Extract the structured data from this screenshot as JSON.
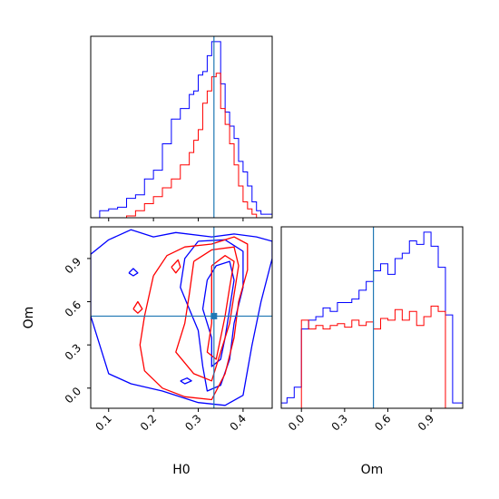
{
  "chart_data": [
    {
      "panel": "H0-marginal",
      "type": "histogram",
      "xlim": [
        0.06,
        0.465
      ],
      "truth": 0.335,
      "x_ticks": [
        0.1,
        0.2,
        0.3,
        0.4
      ],
      "series": [
        {
          "color": "#0000ff",
          "edges": [
            0.06,
            0.08,
            0.1,
            0.12,
            0.14,
            0.16,
            0.18,
            0.2,
            0.22,
            0.24,
            0.26,
            0.28,
            0.29,
            0.3,
            0.31,
            0.32,
            0.33,
            0.34,
            0.35,
            0.36,
            0.37,
            0.38,
            0.39,
            0.4,
            0.41,
            0.42,
            0.43,
            0.44,
            0.45,
            0.465
          ],
          "heights": [
            0.0,
            0.04,
            0.05,
            0.06,
            0.11,
            0.13,
            0.22,
            0.27,
            0.42,
            0.56,
            0.62,
            0.7,
            0.72,
            0.81,
            0.83,
            0.92,
            1.0,
            1.0,
            0.76,
            0.6,
            0.52,
            0.45,
            0.32,
            0.26,
            0.18,
            0.09,
            0.04,
            0.02,
            0.02
          ]
        },
        {
          "color": "#ff0000",
          "edges": [
            0.06,
            0.14,
            0.16,
            0.18,
            0.2,
            0.22,
            0.24,
            0.26,
            0.28,
            0.29,
            0.3,
            0.31,
            0.32,
            0.33,
            0.34,
            0.35,
            0.36,
            0.37,
            0.38,
            0.39,
            0.4,
            0.41,
            0.42,
            0.43,
            0.465
          ],
          "heights": [
            0.0,
            0.01,
            0.04,
            0.08,
            0.12,
            0.17,
            0.22,
            0.3,
            0.37,
            0.44,
            0.5,
            0.65,
            0.72,
            0.8,
            0.82,
            0.62,
            0.53,
            0.42,
            0.3,
            0.18,
            0.09,
            0.05,
            0.02,
            0.0
          ]
        }
      ]
    },
    {
      "panel": "H0-Om-2D",
      "type": "contour",
      "xlabel": "H0",
      "ylabel": "Om",
      "xlim": [
        0.06,
        0.465
      ],
      "ylim": [
        -0.14,
        1.12
      ],
      "truth": [
        0.335,
        0.5
      ],
      "x_ticks": [
        0.1,
        0.2,
        0.3,
        0.4
      ],
      "y_ticks": [
        0.0,
        0.3,
        0.6,
        0.9
      ],
      "series": [
        {
          "color": "#0000ff",
          "contours": [
            [
              [
                0.06,
                0.93
              ],
              [
                0.1,
                1.03
              ],
              [
                0.15,
                1.1
              ],
              [
                0.2,
                1.05
              ],
              [
                0.25,
                1.08
              ],
              [
                0.33,
                1.05
              ],
              [
                0.38,
                1.07
              ],
              [
                0.43,
                1.05
              ],
              [
                0.465,
                1.02
              ],
              [
                0.465,
                0.9
              ],
              [
                0.44,
                0.6
              ],
              [
                0.42,
                0.3
              ],
              [
                0.4,
                -0.05
              ],
              [
                0.36,
                -0.12
              ],
              [
                0.3,
                -0.1
              ],
              [
                0.22,
                -0.02
              ],
              [
                0.15,
                0.03
              ],
              [
                0.1,
                0.1
              ],
              [
                0.08,
                0.3
              ],
              [
                0.06,
                0.5
              ],
              [
                0.06,
                0.93
              ]
            ],
            [
              [
                0.3,
                1.02
              ],
              [
                0.36,
                1.03
              ],
              [
                0.4,
                0.95
              ],
              [
                0.4,
                0.7
              ],
              [
                0.38,
                0.45
              ],
              [
                0.37,
                0.2
              ],
              [
                0.35,
                0.02
              ],
              [
                0.32,
                -0.02
              ],
              [
                0.31,
                0.15
              ],
              [
                0.3,
                0.4
              ],
              [
                0.28,
                0.55
              ],
              [
                0.26,
                0.7
              ],
              [
                0.27,
                0.9
              ],
              [
                0.3,
                1.02
              ]
            ],
            [
              [
                0.32,
                0.75
              ],
              [
                0.34,
                0.85
              ],
              [
                0.37,
                0.88
              ],
              [
                0.38,
                0.75
              ],
              [
                0.37,
                0.55
              ],
              [
                0.36,
                0.35
              ],
              [
                0.35,
                0.2
              ],
              [
                0.33,
                0.15
              ],
              [
                0.33,
                0.35
              ],
              [
                0.31,
                0.55
              ],
              [
                0.32,
                0.75
              ]
            ],
            [
              [
                0.145,
                0.8
              ],
              [
                0.155,
                0.83
              ],
              [
                0.165,
                0.8
              ],
              [
                0.155,
                0.78
              ],
              [
                0.145,
                0.8
              ]
            ],
            [
              [
                0.26,
                0.05
              ],
              [
                0.275,
                0.07
              ],
              [
                0.285,
                0.05
              ],
              [
                0.27,
                0.03
              ],
              [
                0.26,
                0.05
              ]
            ]
          ]
        },
        {
          "color": "#ff0000",
          "contours": [
            [
              [
                0.2,
                0.78
              ],
              [
                0.23,
                0.92
              ],
              [
                0.27,
                0.98
              ],
              [
                0.33,
                1.0
              ],
              [
                0.38,
                1.05
              ],
              [
                0.41,
                1.0
              ],
              [
                0.41,
                0.82
              ],
              [
                0.39,
                0.6
              ],
              [
                0.38,
                0.35
              ],
              [
                0.36,
                0.1
              ],
              [
                0.33,
                -0.08
              ],
              [
                0.27,
                -0.06
              ],
              [
                0.22,
                0.0
              ],
              [
                0.18,
                0.12
              ],
              [
                0.17,
                0.3
              ],
              [
                0.18,
                0.5
              ],
              [
                0.2,
                0.78
              ]
            ],
            [
              [
                0.29,
                0.88
              ],
              [
                0.33,
                0.96
              ],
              [
                0.38,
                0.98
              ],
              [
                0.39,
                0.85
              ],
              [
                0.38,
                0.65
              ],
              [
                0.37,
                0.45
              ],
              [
                0.35,
                0.25
              ],
              [
                0.33,
                0.05
              ],
              [
                0.29,
                0.1
              ],
              [
                0.25,
                0.25
              ],
              [
                0.27,
                0.45
              ],
              [
                0.28,
                0.65
              ],
              [
                0.29,
                0.88
              ]
            ],
            [
              [
                0.33,
                0.85
              ],
              [
                0.36,
                0.92
              ],
              [
                0.38,
                0.88
              ],
              [
                0.37,
                0.7
              ],
              [
                0.36,
                0.5
              ],
              [
                0.35,
                0.35
              ],
              [
                0.34,
                0.2
              ],
              [
                0.32,
                0.25
              ],
              [
                0.33,
                0.45
              ],
              [
                0.33,
                0.65
              ],
              [
                0.33,
                0.85
              ]
            ],
            [
              [
                0.155,
                0.55
              ],
              [
                0.165,
                0.6
              ],
              [
                0.175,
                0.55
              ],
              [
                0.165,
                0.52
              ],
              [
                0.155,
                0.55
              ]
            ],
            [
              [
                0.24,
                0.84
              ],
              [
                0.255,
                0.89
              ],
              [
                0.26,
                0.84
              ],
              [
                0.25,
                0.8
              ],
              [
                0.24,
                0.84
              ]
            ]
          ]
        }
      ]
    },
    {
      "panel": "Om-marginal",
      "type": "histogram",
      "xlabel": "Om",
      "xlim": [
        -0.14,
        1.12
      ],
      "truth": 0.5,
      "x_ticks": [
        0.0,
        0.3,
        0.6,
        0.9
      ],
      "series": [
        {
          "color": "#0000ff",
          "edges": [
            -0.14,
            -0.1,
            -0.05,
            0.0,
            0.05,
            0.1,
            0.15,
            0.2,
            0.25,
            0.3,
            0.35,
            0.4,
            0.45,
            0.5,
            0.55,
            0.6,
            0.65,
            0.7,
            0.75,
            0.8,
            0.85,
            0.9,
            0.95,
            1.0,
            1.05,
            1.12
          ],
          "heights": [
            0.03,
            0.06,
            0.12,
            0.45,
            0.5,
            0.52,
            0.57,
            0.55,
            0.6,
            0.6,
            0.62,
            0.67,
            0.72,
            0.78,
            0.82,
            0.76,
            0.85,
            0.88,
            0.95,
            0.93,
            1.0,
            0.92,
            0.8,
            0.53,
            0.03
          ]
        },
        {
          "color": "#ff0000",
          "edges": [
            -0.14,
            0.0,
            0.05,
            0.1,
            0.15,
            0.2,
            0.25,
            0.3,
            0.35,
            0.4,
            0.45,
            0.5,
            0.55,
            0.6,
            0.65,
            0.7,
            0.75,
            0.8,
            0.85,
            0.9,
            0.95,
            1.0,
            1.12
          ],
          "heights": [
            0.0,
            0.5,
            0.45,
            0.47,
            0.45,
            0.47,
            0.48,
            0.46,
            0.5,
            0.47,
            0.49,
            0.45,
            0.51,
            0.5,
            0.56,
            0.5,
            0.55,
            0.47,
            0.52,
            0.58,
            0.55,
            0.0
          ]
        }
      ]
    }
  ]
}
